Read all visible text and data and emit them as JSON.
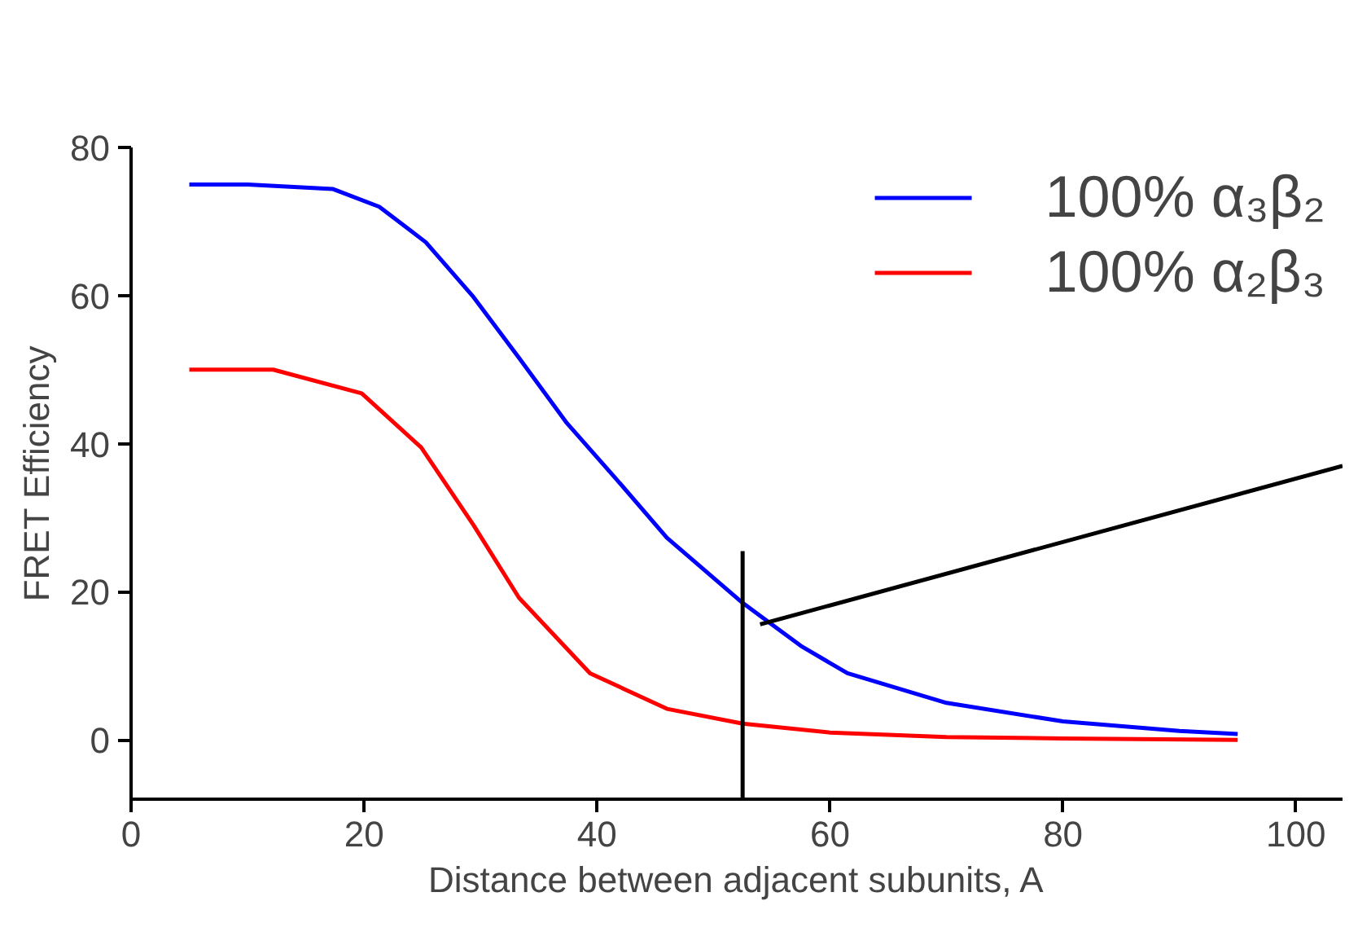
{
  "chart_data": {
    "type": "line",
    "xlabel": "Distance between adjacent subunits, A",
    "ylabel": "FRET Efficiency",
    "xlim": [
      0,
      104
    ],
    "ylim": [
      -8,
      80
    ],
    "xticks": [
      0,
      20,
      40,
      60,
      80,
      100
    ],
    "yticks": [
      0,
      20,
      40,
      60,
      80
    ],
    "grid": false,
    "legend": "top right",
    "marker": "none",
    "line_style": "solid",
    "series": [
      {
        "name": "100% α₃β₂",
        "color": "#0000ff",
        "x": [
          5,
          10,
          17.3,
          21.3,
          25.3,
          29.4,
          33.3,
          37.4,
          41.5,
          46,
          52.5,
          57.5,
          61.5,
          70,
          80,
          90,
          95
        ],
        "values": [
          75,
          75,
          74.4,
          72,
          67.2,
          59.8,
          51.6,
          42.8,
          35.5,
          27.3,
          18.5,
          12.7,
          9,
          5,
          2.5,
          1.2,
          0.8
        ]
      },
      {
        "name": "100% α₂β₃",
        "color": "#ff0000",
        "x": [
          5,
          12.2,
          19.8,
          24.9,
          29.4,
          33.3,
          39.4,
          46,
          52.5,
          60,
          70,
          80,
          95
        ],
        "values": [
          50,
          50,
          46.8,
          39.5,
          29,
          19.2,
          9,
          4.2,
          2.2,
          1,
          0.4,
          0.2,
          0
        ]
      },
      {
        "color": "#000000",
        "x": [
          52.5,
          52.5
        ],
        "values": [
          -8,
          25.5
        ]
      },
      {
        "color": "#000000",
        "x": [
          54,
          104
        ],
        "values": [
          15.6,
          37
        ]
      }
    ]
  }
}
